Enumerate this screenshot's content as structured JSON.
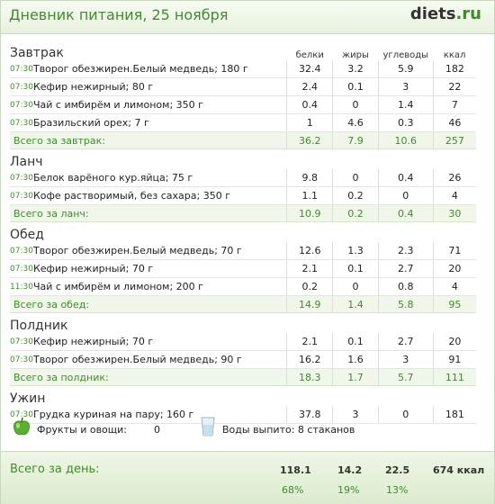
{
  "header": {
    "title": "Дневник питания, 25 ноября",
    "logo_main": "diets",
    "logo_suffix": ".ru"
  },
  "columns": [
    "белки",
    "жиры",
    "углеводы",
    "ккал"
  ],
  "meals": [
    {
      "title": "Завтрак",
      "items": [
        {
          "time": "07:30",
          "name": "Творог обезжирен.Белый медведь; 180 г",
          "b": "32.4",
          "f": "3.2",
          "c": "5.9",
          "k": "182"
        },
        {
          "time": "07:30",
          "name": "Кефир нежирный; 80 г",
          "b": "2.4",
          "f": "0.1",
          "c": "3",
          "k": "22"
        },
        {
          "time": "07:30",
          "name": "Чай с имбирём и лимоном; 350 г",
          "b": "0.4",
          "f": "0",
          "c": "1.4",
          "k": "7"
        },
        {
          "time": "07:30",
          "name": "Бразильский орех; 7 г",
          "b": "1",
          "f": "4.6",
          "c": "0.3",
          "k": "46"
        }
      ],
      "total": {
        "label": "Всего за завтрак:",
        "b": "36.2",
        "f": "7.9",
        "c": "10.6",
        "k": "257"
      }
    },
    {
      "title": "Ланч",
      "items": [
        {
          "time": "07:30",
          "name": "Белок варёного кур.яйца; 75 г",
          "b": "9.8",
          "f": "0",
          "c": "0.4",
          "k": "26"
        },
        {
          "time": "07:30",
          "name": "Кофе растворимый, без сахара; 350 г",
          "b": "1.1",
          "f": "0.2",
          "c": "0",
          "k": "4"
        }
      ],
      "total": {
        "label": "Всего за ланч:",
        "b": "10.9",
        "f": "0.2",
        "c": "0.4",
        "k": "30"
      }
    },
    {
      "title": "Обед",
      "items": [
        {
          "time": "07:30",
          "name": "Творог обезжирен.Белый медведь; 70 г",
          "b": "12.6",
          "f": "1.3",
          "c": "2.3",
          "k": "71"
        },
        {
          "time": "07:30",
          "name": "Кефир нежирный; 70 г",
          "b": "2.1",
          "f": "0.1",
          "c": "2.7",
          "k": "20"
        },
        {
          "time": "11:30",
          "name": "Чай с имбирём и лимоном; 200 г",
          "b": "0.2",
          "f": "0",
          "c": "0.8",
          "k": "4"
        }
      ],
      "total": {
        "label": "Всего за обед:",
        "b": "14.9",
        "f": "1.4",
        "c": "5.8",
        "k": "95"
      }
    },
    {
      "title": "Полдник",
      "items": [
        {
          "time": "07:30",
          "name": "Кефир нежирный; 70 г",
          "b": "2.1",
          "f": "0.1",
          "c": "2.7",
          "k": "20"
        },
        {
          "time": "07:30",
          "name": "Творог обезжирен.Белый медведь; 90 г",
          "b": "16.2",
          "f": "1.6",
          "c": "3",
          "k": "91"
        }
      ],
      "total": {
        "label": "Всего за полдник:",
        "b": "18.3",
        "f": "1.7",
        "c": "5.7",
        "k": "111"
      }
    },
    {
      "title": "Ужин",
      "items": [
        {
          "time": "07:30",
          "name": "Грудка куриная на пару; 160 г",
          "b": "37.8",
          "f": "3",
          "c": "0",
          "k": "181"
        }
      ],
      "total": null
    }
  ],
  "extras": {
    "fruits_label": "Фрукты и овощи:",
    "fruits_value": "0",
    "water_label": "Воды выпито: 8 стаканов"
  },
  "day_total": {
    "label": "Всего за день:",
    "b": "118.1",
    "f": "14.2",
    "c": "22.5",
    "k": "674 ккал",
    "b_pct": "68%",
    "f_pct": "19%",
    "c_pct": "13%"
  },
  "colors": {
    "accent": "#3e8d2b",
    "total_bg": "#f0f6ea"
  }
}
